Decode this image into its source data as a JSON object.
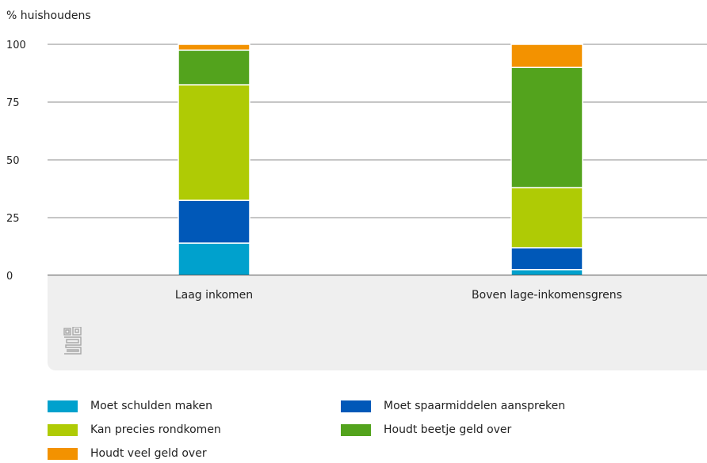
{
  "chart_data": {
    "type": "bar",
    "stacked": true,
    "title": "",
    "ylabel": "% huishoudens",
    "xlabel": "",
    "ylim": [
      0,
      100
    ],
    "yticks": [
      0,
      25,
      50,
      75,
      100
    ],
    "grid": true,
    "legend_position": "bottom",
    "categories": [
      "Laag inkomen",
      "Boven lage-inkomensgrens"
    ],
    "series": [
      {
        "name": "Moet schulden maken",
        "color": "#00a1cd",
        "values": [
          14,
          2.5
        ]
      },
      {
        "name": "Moet spaarmiddelen aanspreken",
        "color": "#0058b8",
        "values": [
          18.5,
          9.5
        ]
      },
      {
        "name": "Kan precies rondkomen",
        "color": "#afcb05",
        "values": [
          50,
          26
        ]
      },
      {
        "name": "Houdt beetje geld over",
        "color": "#53a31d",
        "values": [
          15,
          52
        ]
      },
      {
        "name": "Houdt veel geld over",
        "color": "#f39200",
        "values": [
          2.5,
          10
        ]
      }
    ]
  }
}
